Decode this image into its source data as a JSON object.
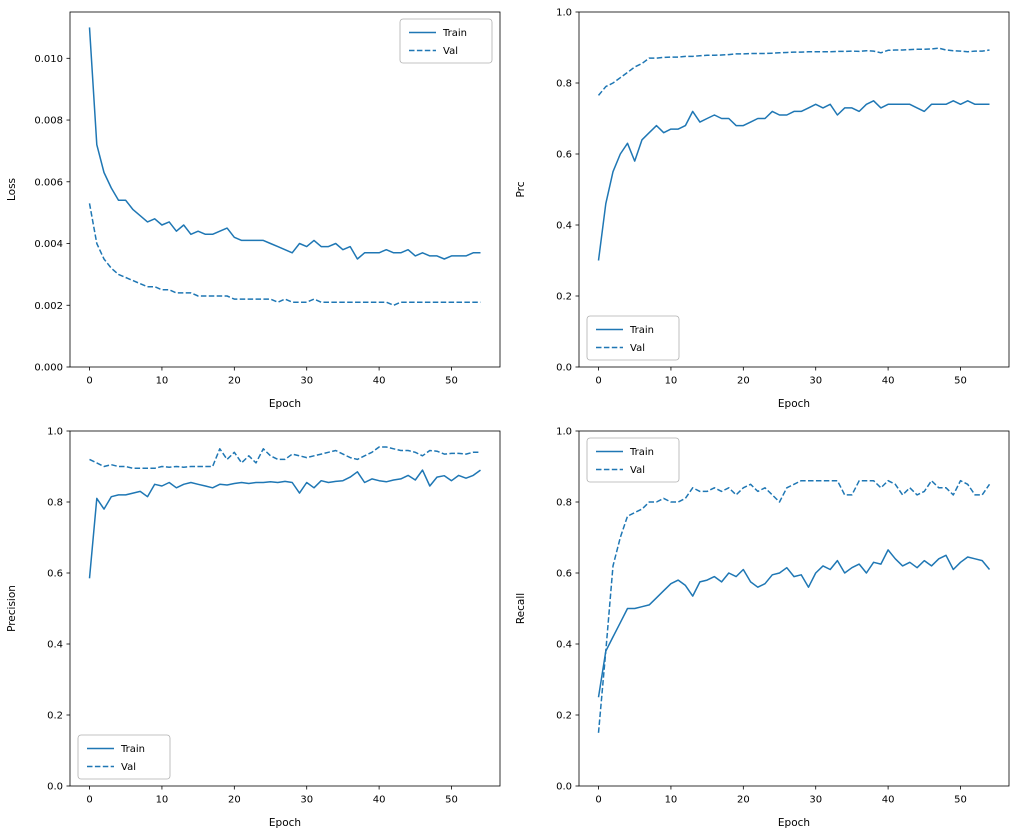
{
  "page": {
    "background": "#ffffff"
  },
  "accent_color": "#1f77b4",
  "chart_data": [
    {
      "id": "loss",
      "type": "line",
      "title": "",
      "xlabel": "Epoch",
      "ylabel": "Loss",
      "xlim": [
        -2.7,
        56.7
      ],
      "ylim": [
        0,
        0.0115
      ],
      "xticks": [
        0,
        10,
        20,
        30,
        40,
        50
      ],
      "xtick_labels": [
        "0",
        "10",
        "20",
        "30",
        "40",
        "50"
      ],
      "yticks": [
        0,
        0.002,
        0.004,
        0.006,
        0.008,
        0.01
      ],
      "ytick_labels": [
        "0.000",
        "0.002",
        "0.004",
        "0.006",
        "0.008",
        "0.010"
      ],
      "grid": false,
      "legend_position": "upper-right",
      "color": "#1f77b4",
      "x_start": 0,
      "x_step": 1,
      "series": [
        {
          "name": "Train",
          "line_style": "solid",
          "values": [
            0.011,
            0.0072,
            0.0063,
            0.0058,
            0.0054,
            0.0054,
            0.0051,
            0.0049,
            0.0047,
            0.0048,
            0.0046,
            0.0047,
            0.0044,
            0.0046,
            0.0043,
            0.0044,
            0.0043,
            0.0043,
            0.0044,
            0.0045,
            0.0042,
            0.0041,
            0.0041,
            0.0041,
            0.0041,
            0.004,
            0.0039,
            0.0038,
            0.0037,
            0.004,
            0.0039,
            0.0041,
            0.0039,
            0.0039,
            0.004,
            0.0038,
            0.0039,
            0.0035,
            0.0037,
            0.0037,
            0.0037,
            0.0038,
            0.0037,
            0.0037,
            0.0038,
            0.0036,
            0.0037,
            0.0036,
            0.0036,
            0.0035,
            0.0036,
            0.0036,
            0.0036,
            0.0037,
            0.0037
          ]
        },
        {
          "name": "Val",
          "line_style": "dashed",
          "values": [
            0.0053,
            0.004,
            0.0035,
            0.0032,
            0.003,
            0.0029,
            0.0028,
            0.0027,
            0.0026,
            0.0026,
            0.0025,
            0.0025,
            0.0024,
            0.0024,
            0.0024,
            0.0023,
            0.0023,
            0.0023,
            0.0023,
            0.0023,
            0.0022,
            0.0022,
            0.0022,
            0.0022,
            0.0022,
            0.0022,
            0.0021,
            0.0022,
            0.0021,
            0.0021,
            0.0021,
            0.0022,
            0.0021,
            0.0021,
            0.0021,
            0.0021,
            0.0021,
            0.0021,
            0.0021,
            0.0021,
            0.0021,
            0.0021,
            0.002,
            0.0021,
            0.0021,
            0.0021,
            0.0021,
            0.0021,
            0.0021,
            0.0021,
            0.0021,
            0.0021,
            0.0021,
            0.0021,
            0.0021
          ]
        }
      ]
    },
    {
      "id": "prc",
      "type": "line",
      "title": "",
      "xlabel": "Epoch",
      "ylabel": "Prc",
      "xlim": [
        -2.7,
        56.7
      ],
      "ylim": [
        0,
        1
      ],
      "xticks": [
        0,
        10,
        20,
        30,
        40,
        50
      ],
      "xtick_labels": [
        "0",
        "10",
        "20",
        "30",
        "40",
        "50"
      ],
      "yticks": [
        0,
        0.2,
        0.4,
        0.6,
        0.8,
        1.0
      ],
      "ytick_labels": [
        "0.0",
        "0.2",
        "0.4",
        "0.6",
        "0.8",
        "1.0"
      ],
      "grid": false,
      "legend_position": "lower-left",
      "color": "#1f77b4",
      "x_start": 0,
      "x_step": 1,
      "series": [
        {
          "name": "Train",
          "line_style": "solid",
          "values": [
            0.3,
            0.46,
            0.55,
            0.6,
            0.63,
            0.58,
            0.64,
            0.66,
            0.68,
            0.66,
            0.67,
            0.67,
            0.68,
            0.72,
            0.69,
            0.7,
            0.71,
            0.7,
            0.7,
            0.68,
            0.68,
            0.69,
            0.7,
            0.7,
            0.72,
            0.71,
            0.71,
            0.72,
            0.72,
            0.73,
            0.74,
            0.73,
            0.74,
            0.71,
            0.73,
            0.73,
            0.72,
            0.74,
            0.75,
            0.73,
            0.74,
            0.74,
            0.74,
            0.74,
            0.73,
            0.72,
            0.74,
            0.74,
            0.74,
            0.75,
            0.74,
            0.75,
            0.74,
            0.74,
            0.74
          ]
        },
        {
          "name": "Val",
          "line_style": "dashed",
          "values": [
            0.765,
            0.79,
            0.8,
            0.815,
            0.83,
            0.845,
            0.855,
            0.87,
            0.87,
            0.872,
            0.873,
            0.873,
            0.875,
            0.875,
            0.877,
            0.878,
            0.878,
            0.879,
            0.88,
            0.882,
            0.882,
            0.883,
            0.883,
            0.883,
            0.884,
            0.885,
            0.886,
            0.887,
            0.887,
            0.888,
            0.888,
            0.888,
            0.888,
            0.889,
            0.889,
            0.89,
            0.889,
            0.891,
            0.89,
            0.885,
            0.892,
            0.893,
            0.893,
            0.894,
            0.895,
            0.895,
            0.896,
            0.898,
            0.893,
            0.891,
            0.89,
            0.888,
            0.89,
            0.89,
            0.893
          ]
        }
      ]
    },
    {
      "id": "precision",
      "type": "line",
      "title": "",
      "xlabel": "Epoch",
      "ylabel": "Precision",
      "xlim": [
        -2.7,
        56.7
      ],
      "ylim": [
        0,
        1
      ],
      "xticks": [
        0,
        10,
        20,
        30,
        40,
        50
      ],
      "xtick_labels": [
        "0",
        "10",
        "20",
        "30",
        "40",
        "50"
      ],
      "yticks": [
        0,
        0.2,
        0.4,
        0.6,
        0.8,
        1.0
      ],
      "ytick_labels": [
        "0.0",
        "0.2",
        "0.4",
        "0.6",
        "0.8",
        "1.0"
      ],
      "grid": false,
      "legend_position": "lower-left",
      "color": "#1f77b4",
      "x_start": 0,
      "x_step": 1,
      "series": [
        {
          "name": "Train",
          "line_style": "solid",
          "values": [
            0.585,
            0.81,
            0.78,
            0.815,
            0.82,
            0.82,
            0.825,
            0.83,
            0.815,
            0.85,
            0.845,
            0.855,
            0.84,
            0.85,
            0.855,
            0.85,
            0.845,
            0.84,
            0.85,
            0.848,
            0.852,
            0.855,
            0.852,
            0.855,
            0.855,
            0.857,
            0.855,
            0.858,
            0.855,
            0.825,
            0.855,
            0.84,
            0.86,
            0.855,
            0.858,
            0.86,
            0.87,
            0.885,
            0.855,
            0.865,
            0.86,
            0.857,
            0.862,
            0.865,
            0.875,
            0.862,
            0.89,
            0.845,
            0.87,
            0.874,
            0.86,
            0.875,
            0.867,
            0.875,
            0.89
          ]
        },
        {
          "name": "Val",
          "line_style": "dashed",
          "values": [
            0.92,
            0.91,
            0.9,
            0.905,
            0.9,
            0.9,
            0.895,
            0.895,
            0.895,
            0.895,
            0.9,
            0.898,
            0.9,
            0.898,
            0.9,
            0.9,
            0.9,
            0.9,
            0.95,
            0.92,
            0.94,
            0.91,
            0.93,
            0.91,
            0.95,
            0.93,
            0.92,
            0.92,
            0.935,
            0.93,
            0.925,
            0.93,
            0.935,
            0.94,
            0.945,
            0.935,
            0.925,
            0.92,
            0.93,
            0.94,
            0.955,
            0.955,
            0.95,
            0.945,
            0.945,
            0.94,
            0.93,
            0.945,
            0.943,
            0.935,
            0.937,
            0.937,
            0.935,
            0.94,
            0.94
          ]
        }
      ]
    },
    {
      "id": "recall",
      "type": "line",
      "title": "",
      "xlabel": "Epoch",
      "ylabel": "Recall",
      "xlim": [
        -2.7,
        56.7
      ],
      "ylim": [
        0,
        1
      ],
      "xticks": [
        0,
        10,
        20,
        30,
        40,
        50
      ],
      "xtick_labels": [
        "0",
        "10",
        "20",
        "30",
        "40",
        "50"
      ],
      "yticks": [
        0,
        0.2,
        0.4,
        0.6,
        0.8,
        1.0
      ],
      "ytick_labels": [
        "0.0",
        "0.2",
        "0.4",
        "0.6",
        "0.8",
        "1.0"
      ],
      "grid": false,
      "legend_position": "upper-left",
      "color": "#1f77b4",
      "x_start": 0,
      "x_step": 1,
      "series": [
        {
          "name": "Train",
          "line_style": "solid",
          "values": [
            0.25,
            0.38,
            0.42,
            0.46,
            0.5,
            0.5,
            0.505,
            0.51,
            0.53,
            0.55,
            0.57,
            0.58,
            0.565,
            0.535,
            0.575,
            0.58,
            0.59,
            0.575,
            0.6,
            0.59,
            0.61,
            0.575,
            0.56,
            0.57,
            0.595,
            0.6,
            0.615,
            0.59,
            0.595,
            0.56,
            0.6,
            0.62,
            0.61,
            0.635,
            0.6,
            0.615,
            0.625,
            0.6,
            0.63,
            0.625,
            0.665,
            0.64,
            0.62,
            0.63,
            0.615,
            0.635,
            0.62,
            0.64,
            0.65,
            0.61,
            0.63,
            0.645,
            0.64,
            0.635,
            0.61
          ]
        },
        {
          "name": "Val",
          "line_style": "dashed",
          "values": [
            0.15,
            0.38,
            0.62,
            0.7,
            0.76,
            0.77,
            0.78,
            0.8,
            0.8,
            0.81,
            0.8,
            0.8,
            0.81,
            0.84,
            0.83,
            0.83,
            0.84,
            0.83,
            0.84,
            0.82,
            0.84,
            0.85,
            0.83,
            0.84,
            0.82,
            0.8,
            0.84,
            0.85,
            0.86,
            0.86,
            0.86,
            0.86,
            0.86,
            0.86,
            0.82,
            0.82,
            0.86,
            0.86,
            0.86,
            0.84,
            0.86,
            0.85,
            0.82,
            0.84,
            0.82,
            0.83,
            0.86,
            0.84,
            0.84,
            0.82,
            0.86,
            0.85,
            0.82,
            0.82,
            0.85
          ]
        }
      ]
    }
  ]
}
